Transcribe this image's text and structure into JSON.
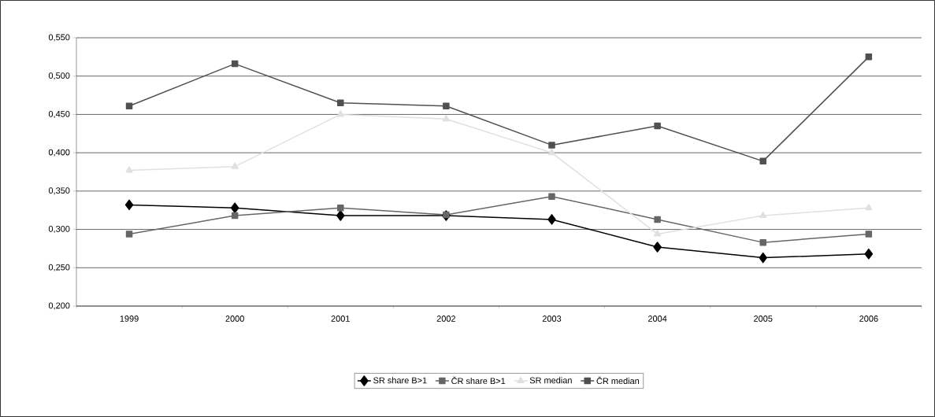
{
  "chart_data": {
    "type": "line",
    "categories": [
      "1999",
      "2000",
      "2001",
      "2002",
      "2003",
      "2004",
      "2005",
      "2006"
    ],
    "series": [
      {
        "name": "SR share B>1",
        "color": "#000000",
        "marker": "diamond",
        "values": [
          0.332,
          0.328,
          0.318,
          0.318,
          0.313,
          0.277,
          0.263,
          0.268
        ]
      },
      {
        "name": "ČR share B>1",
        "color": "#666666",
        "marker": "square",
        "values": [
          0.294,
          0.318,
          0.328,
          0.319,
          0.343,
          0.313,
          0.283,
          0.294
        ]
      },
      {
        "name": "SR median",
        "color": "#e0e0e0",
        "marker": "triangle",
        "values": [
          0.377,
          0.382,
          0.45,
          0.444,
          0.4,
          0.294,
          0.318,
          0.328
        ]
      },
      {
        "name": "ČR median",
        "color": "#505050",
        "marker": "square",
        "values": [
          0.461,
          0.516,
          0.465,
          0.461,
          0.41,
          0.435,
          0.389,
          0.525
        ]
      }
    ],
    "ylim": [
      0.2,
      0.55
    ],
    "yticks": [
      {
        "value": 0.2,
        "label": "0,200"
      },
      {
        "value": 0.25,
        "label": "0,250"
      },
      {
        "value": 0.3,
        "label": "0,300"
      },
      {
        "value": 0.35,
        "label": "0,350"
      },
      {
        "value": 0.4,
        "label": "0,400"
      },
      {
        "value": 0.45,
        "label": "0,450"
      },
      {
        "value": 0.5,
        "label": "0,500"
      },
      {
        "value": 0.55,
        "label": "0,550"
      }
    ],
    "grid": "y",
    "legend": "bottom",
    "line_style": "solid"
  }
}
